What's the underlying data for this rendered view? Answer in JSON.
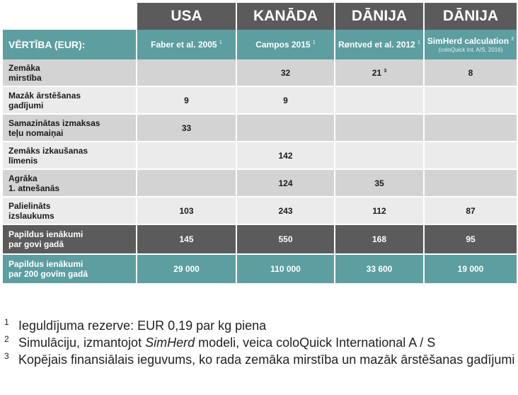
{
  "table": {
    "countries": [
      "USA",
      "KANĀDA",
      "DĀNIJA",
      "DĀNIJA"
    ],
    "header": {
      "label": "VĒRTĪBA (EUR):",
      "sources": [
        {
          "text": "Faber et al. 2005",
          "sup": "1",
          "sub": ""
        },
        {
          "text": "Campos 2015",
          "sup": "1",
          "sub": ""
        },
        {
          "text": "Røntved et al. 2012",
          "sup": "1",
          "sub": ""
        },
        {
          "text": "SimHerd calculation",
          "sup": "2",
          "sub": "(coloQuick Int. A/S, 2016)"
        }
      ]
    },
    "rows": [
      {
        "line1": "Zemāka",
        "line2": "mirstība",
        "values": [
          "",
          "32",
          "21",
          "8"
        ],
        "sups": [
          "",
          "",
          "3",
          ""
        ]
      },
      {
        "line1": "Mazāk ārstēšanas",
        "line2": "gadījumi",
        "values": [
          "9",
          "9",
          "",
          ""
        ],
        "sups": [
          "",
          "",
          "",
          ""
        ]
      },
      {
        "line1": "Samazinātas izmaksas",
        "line2": "teļu nomaiņai",
        "values": [
          "33",
          "",
          "",
          ""
        ],
        "sups": [
          "",
          "",
          "",
          ""
        ]
      },
      {
        "line1": "Zemāks izkaušanas",
        "line2": "līmenis",
        "values": [
          "",
          "142",
          "",
          ""
        ],
        "sups": [
          "",
          "",
          "",
          ""
        ]
      },
      {
        "line1": "Agrāka",
        "line2": "1. atnešanās",
        "values": [
          "",
          "124",
          "35",
          ""
        ],
        "sups": [
          "",
          "",
          "",
          ""
        ]
      },
      {
        "line1": "Palielināts",
        "line2": "izslaukums",
        "values": [
          "103",
          "243",
          "112",
          "87"
        ],
        "sups": [
          "",
          "",
          "",
          ""
        ]
      }
    ],
    "totals": [
      {
        "line1": "Papildus ienākumi",
        "line2": "par govi gadā",
        "values": [
          "145",
          "550",
          "168",
          "95"
        ]
      },
      {
        "line1": "Papildus ienākumi",
        "line2": "par 200 govīm gadā",
        "values": [
          "29 000",
          "110 000",
          "33 600",
          "19 000"
        ]
      }
    ]
  },
  "footnotes": [
    {
      "num": "1",
      "text": "Ieguldījuma rezerve: EUR 0,19 par kg piena"
    },
    {
      "num": "2",
      "pre": "Simulāciju, izmantojot ",
      "em": "SimHerd",
      "post": " modeli, veica coloQuick International A / S"
    },
    {
      "num": "3",
      "text": "Kopējais finansiālais ieguvums, ko rada zemāka mirstība un mazāk ārstēšanas gadījumi"
    }
  ],
  "colors": {
    "teal": "#5d9ea1",
    "dark_gray": "#5b5b5b",
    "light_gray": "#d3d3d3",
    "lighter_gray": "#ebebeb"
  }
}
